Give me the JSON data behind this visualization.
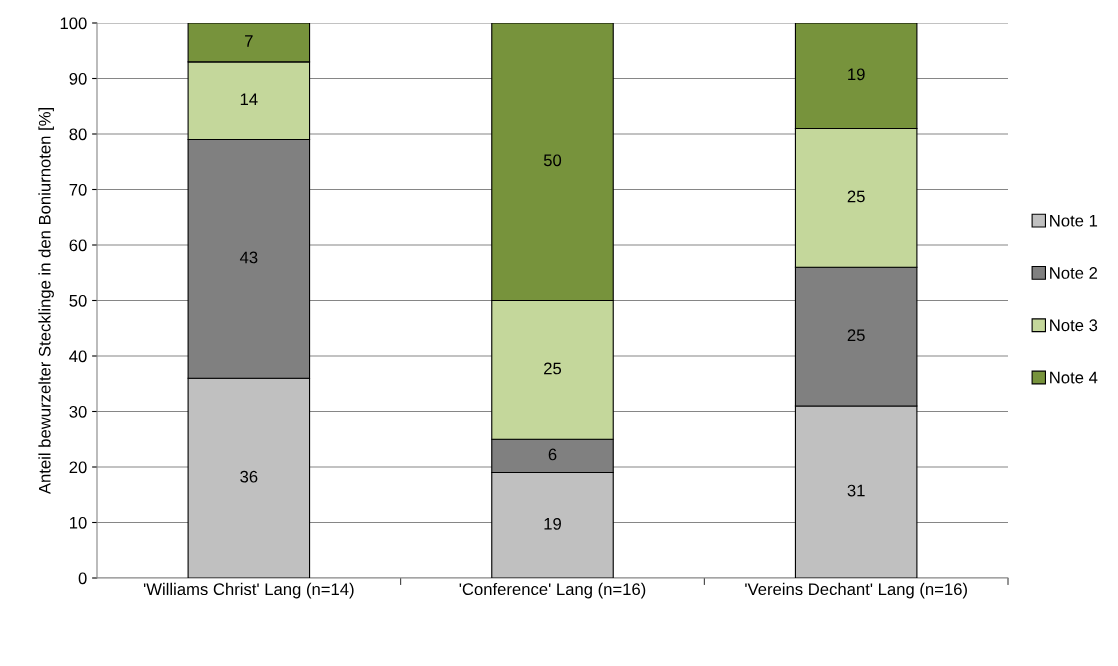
{
  "chart_data": {
    "type": "bar",
    "stacked": true,
    "categories": [
      "'Williams Christ' Lang (n=14)",
      "'Conference' Lang (n=16)",
      "'Vereins Dechant' Lang (n=16)"
    ],
    "series": [
      {
        "name": "Note 1",
        "color": "#c0c0c0",
        "values": [
          36,
          19,
          31
        ]
      },
      {
        "name": "Note 2",
        "color": "#808080",
        "values": [
          43,
          6,
          25
        ]
      },
      {
        "name": "Note 3",
        "color": "#c4d79b",
        "values": [
          14,
          25,
          25
        ]
      },
      {
        "name": "Note 4",
        "color": "#77933c",
        "values": [
          7,
          50,
          19
        ]
      }
    ],
    "ylabel": "Anteil bewurzelter Stecklinge in den Boniurnoten [%]",
    "ylim": [
      0,
      100
    ],
    "yticks": [
      0,
      10,
      20,
      30,
      40,
      50,
      60,
      70,
      80,
      90,
      100
    ],
    "grid": "y",
    "legend": "right",
    "data_labels": true
  }
}
